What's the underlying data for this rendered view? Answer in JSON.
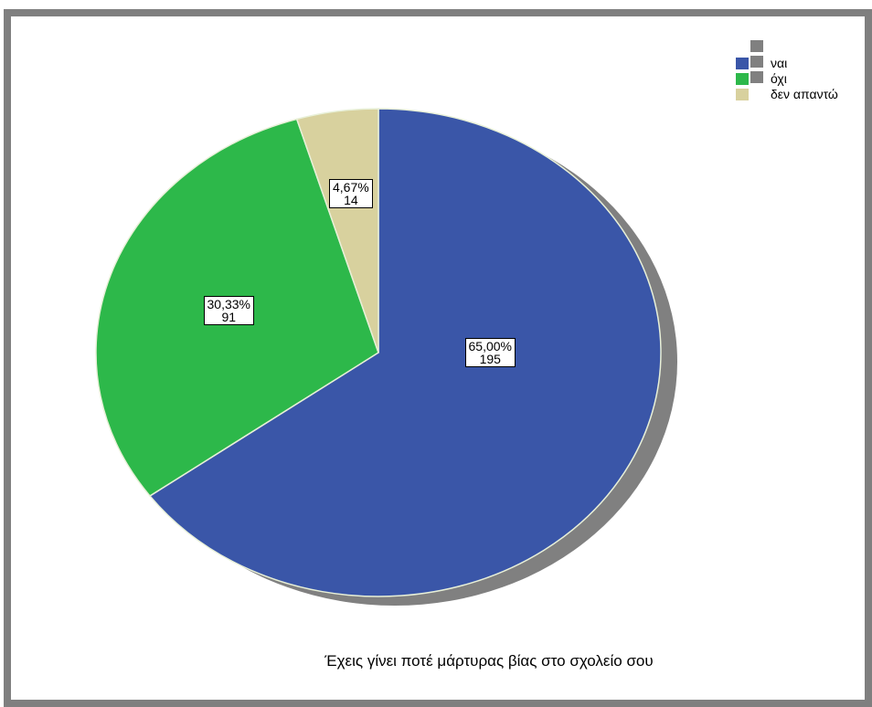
{
  "chart_data": {
    "type": "pie",
    "title": "Έχεις γίνει ποτέ μάρτυρας βίας στο σχολείο σου",
    "slices": [
      {
        "name": "ναι",
        "percent": "65,00%",
        "count": "195",
        "value": 195,
        "color": "#3a56a8"
      },
      {
        "name": "όχι",
        "percent": "30,33%",
        "count": "91",
        "value": 91,
        "color": "#2db84a"
      },
      {
        "name": "δεν απαντώ",
        "percent": "4,67%",
        "count": "14",
        "value": 14,
        "color": "#d8d19e"
      }
    ],
    "legend_position": "top-right",
    "shadow_color": "#808080",
    "frame_color": "#7f7f7f"
  }
}
